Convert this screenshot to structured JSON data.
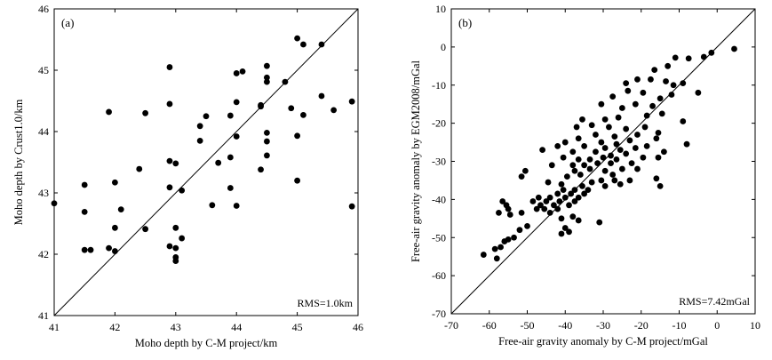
{
  "chart_data": [
    {
      "type": "scatter",
      "panel_label": "(a)",
      "xlabel": "Moho depth by C-M project/km",
      "ylabel": "Moho depth by Crust1.0/km",
      "xlim": [
        41,
        46
      ],
      "ylim": [
        41,
        46
      ],
      "xticks": [
        41,
        42,
        43,
        44,
        45,
        46
      ],
      "yticks": [
        41,
        42,
        43,
        44,
        45,
        46
      ],
      "xtick_labels": [
        "41",
        "42",
        "43",
        "44",
        "45",
        "46"
      ],
      "ytick_labels": [
        "41",
        "42",
        "43",
        "44",
        "45",
        "46"
      ],
      "annotation": "RMS=1.0km",
      "reference_line": "y = x",
      "points": [
        [
          41.0,
          42.83
        ],
        [
          41.5,
          43.13
        ],
        [
          41.5,
          42.69
        ],
        [
          41.5,
          42.07
        ],
        [
          41.6,
          42.07
        ],
        [
          41.9,
          44.32
        ],
        [
          41.9,
          42.1
        ],
        [
          42.0,
          43.17
        ],
        [
          42.0,
          42.43
        ],
        [
          42.0,
          42.05
        ],
        [
          42.1,
          42.73
        ],
        [
          42.4,
          43.39
        ],
        [
          42.5,
          44.3
        ],
        [
          42.5,
          42.41
        ],
        [
          42.9,
          45.05
        ],
        [
          42.9,
          44.45
        ],
        [
          42.9,
          43.52
        ],
        [
          42.9,
          43.09
        ],
        [
          42.9,
          42.13
        ],
        [
          43.0,
          43.48
        ],
        [
          43.0,
          42.43
        ],
        [
          43.0,
          42.1
        ],
        [
          43.0,
          41.95
        ],
        [
          43.0,
          41.89
        ],
        [
          43.1,
          43.04
        ],
        [
          43.1,
          42.26
        ],
        [
          43.4,
          44.09
        ],
        [
          43.4,
          43.85
        ],
        [
          43.5,
          44.25
        ],
        [
          43.6,
          42.8
        ],
        [
          43.7,
          43.49
        ],
        [
          43.9,
          44.26
        ],
        [
          43.9,
          43.58
        ],
        [
          43.9,
          43.08
        ],
        [
          44.0,
          44.95
        ],
        [
          44.0,
          44.48
        ],
        [
          44.0,
          43.92
        ],
        [
          44.0,
          42.79
        ],
        [
          44.1,
          44.98
        ],
        [
          44.4,
          44.43
        ],
        [
          44.4,
          44.41
        ],
        [
          44.4,
          43.38
        ],
        [
          44.5,
          45.07
        ],
        [
          44.5,
          44.88
        ],
        [
          44.5,
          44.81
        ],
        [
          44.5,
          43.98
        ],
        [
          44.5,
          43.84
        ],
        [
          44.5,
          43.61
        ],
        [
          44.8,
          44.81
        ],
        [
          44.9,
          44.38
        ],
        [
          45.0,
          45.52
        ],
        [
          45.0,
          43.93
        ],
        [
          45.0,
          43.2
        ],
        [
          45.1,
          45.42
        ],
        [
          45.1,
          44.27
        ],
        [
          45.4,
          45.42
        ],
        [
          45.4,
          44.58
        ],
        [
          45.6,
          44.35
        ],
        [
          45.9,
          44.49
        ],
        [
          45.9,
          42.78
        ]
      ]
    },
    {
      "type": "scatter",
      "panel_label": "(b)",
      "xlabel": "Free-air gravity anomaly by C-M project/mGal",
      "ylabel": "Free-air gravity anomaly by EGM2008/mGal",
      "xlim": [
        -70,
        10
      ],
      "ylim": [
        -70,
        10
      ],
      "xticks": [
        -70,
        -60,
        -50,
        -40,
        -30,
        -20,
        -10,
        0,
        10
      ],
      "yticks": [
        -70,
        -60,
        -50,
        -40,
        -30,
        -20,
        -10,
        0,
        10
      ],
      "xtick_labels": [
        "-70",
        "-60",
        "-50",
        "-40",
        "-30",
        "-20",
        "-10",
        "0",
        "10"
      ],
      "ytick_labels": [
        "-70",
        "-60",
        "-50",
        "-40",
        "-30",
        "-20",
        "-10",
        "0",
        "10"
      ],
      "annotation": "RMS=7.42mGal",
      "reference_line": "y = x",
      "points": [
        [
          4.5,
          -0.5
        ],
        [
          -1.5,
          -1.5
        ],
        [
          -3.5,
          -2.6
        ],
        [
          -7.5,
          -3.0
        ],
        [
          -11.0,
          -2.8
        ],
        [
          -13.0,
          -5.0
        ],
        [
          -16.5,
          -6.0
        ],
        [
          -9.0,
          -9.5
        ],
        [
          -11.5,
          -10.0
        ],
        [
          -13.5,
          -9.0
        ],
        [
          -17.5,
          -8.5
        ],
        [
          -21.0,
          -8.5
        ],
        [
          -24.0,
          -9.5
        ],
        [
          -5.0,
          -12.0
        ],
        [
          -12.0,
          -12.5
        ],
        [
          -15.0,
          -13.5
        ],
        [
          -19.5,
          -12.0
        ],
        [
          -23.5,
          -11.5
        ],
        [
          -27.5,
          -13.0
        ],
        [
          -17.0,
          -15.5
        ],
        [
          -21.5,
          -15.0
        ],
        [
          -25.0,
          -16.0
        ],
        [
          -30.5,
          -15.0
        ],
        [
          -9.0,
          -19.5
        ],
        [
          -14.5,
          -17.5
        ],
        [
          -18.5,
          -18.0
        ],
        [
          -26.0,
          -18.5
        ],
        [
          -29.5,
          -19.0
        ],
        [
          -35.5,
          -19.0
        ],
        [
          -19.0,
          -21.0
        ],
        [
          -24.0,
          -21.5
        ],
        [
          -28.5,
          -21.0
        ],
        [
          -33.0,
          -20.5
        ],
        [
          -37.0,
          -21.0
        ],
        [
          -15.5,
          -22.5
        ],
        [
          -21.0,
          -23.0
        ],
        [
          -27.0,
          -23.5
        ],
        [
          -32.0,
          -23.0
        ],
        [
          -36.5,
          -24.0
        ],
        [
          -8.0,
          -25.5
        ],
        [
          -16.0,
          -24.0
        ],
        [
          -23.0,
          -24.5
        ],
        [
          -26.5,
          -25.5
        ],
        [
          -30.5,
          -25.0
        ],
        [
          -40.0,
          -25.0
        ],
        [
          -18.5,
          -26.0
        ],
        [
          -21.5,
          -26.5
        ],
        [
          -25.5,
          -27.0
        ],
        [
          -29.5,
          -26.5
        ],
        [
          -35.0,
          -26.0
        ],
        [
          -42.0,
          -26.0
        ],
        [
          -46.0,
          -27.0
        ],
        [
          -14.0,
          -27.5
        ],
        [
          -24.0,
          -28.0
        ],
        [
          -28.0,
          -28.5
        ],
        [
          -32.0,
          -27.5
        ],
        [
          -38.0,
          -27.5
        ],
        [
          -15.5,
          -29.0
        ],
        [
          -19.5,
          -29.0
        ],
        [
          -26.5,
          -29.5
        ],
        [
          -30.0,
          -29.0
        ],
        [
          -33.5,
          -29.5
        ],
        [
          -36.5,
          -29.5
        ],
        [
          -40.5,
          -29.0
        ],
        [
          -22.5,
          -30.5
        ],
        [
          -28.0,
          -30.5
        ],
        [
          -31.5,
          -30.5
        ],
        [
          -35.0,
          -31.0
        ],
        [
          -38.0,
          -31.0
        ],
        [
          -43.5,
          -31.0
        ],
        [
          -21.0,
          -32.0
        ],
        [
          -25.0,
          -32.0
        ],
        [
          -29.5,
          -32.5
        ],
        [
          -33.5,
          -32.0
        ],
        [
          -37.5,
          -32.5
        ],
        [
          -50.5,
          -32.5
        ],
        [
          -27.5,
          -33.5
        ],
        [
          -36.0,
          -33.5
        ],
        [
          -39.5,
          -34.0
        ],
        [
          -51.5,
          -34.0
        ],
        [
          -16.0,
          -34.5
        ],
        [
          -23.0,
          -35.0
        ],
        [
          -27.0,
          -35.0
        ],
        [
          -30.5,
          -35.0
        ],
        [
          -33.0,
          -35.5
        ],
        [
          -15.0,
          -36.5
        ],
        [
          -25.5,
          -36.0
        ],
        [
          -29.5,
          -36.5
        ],
        [
          -35.5,
          -36.5
        ],
        [
          -41.0,
          -36.0
        ],
        [
          -44.5,
          -35.5
        ],
        [
          -34.0,
          -37.5
        ],
        [
          -37.5,
          -37.5
        ],
        [
          -40.5,
          -37.5
        ],
        [
          -35.0,
          -38.5
        ],
        [
          -38.5,
          -38.5
        ],
        [
          -42.0,
          -38.5
        ],
        [
          -36.5,
          -39.5
        ],
        [
          -40.0,
          -39.5
        ],
        [
          -44.0,
          -39.5
        ],
        [
          -47.0,
          -39.5
        ],
        [
          -37.5,
          -40.5
        ],
        [
          -41.5,
          -40.5
        ],
        [
          -45.0,
          -40.5
        ],
        [
          -48.5,
          -40.5
        ],
        [
          -56.5,
          -40.5
        ],
        [
          -39.0,
          -41.5
        ],
        [
          -43.0,
          -41.5
        ],
        [
          -46.5,
          -41.5
        ],
        [
          -55.5,
          -41.5
        ],
        [
          -42.0,
          -42.5
        ],
        [
          -45.5,
          -42.5
        ],
        [
          -47.5,
          -42.5
        ],
        [
          -55.0,
          -42.5
        ],
        [
          -44.0,
          -43.5
        ],
        [
          -51.5,
          -43.5
        ],
        [
          -54.5,
          -44.0
        ],
        [
          -57.5,
          -43.5
        ],
        [
          -38.0,
          -44.5
        ],
        [
          -41.0,
          -45.0
        ],
        [
          -36.5,
          -45.5
        ],
        [
          -31.0,
          -46.0
        ],
        [
          -50.0,
          -47.0
        ],
        [
          -40.0,
          -47.5
        ],
        [
          -52.0,
          -48.0
        ],
        [
          -39.0,
          -48.5
        ],
        [
          -41.0,
          -49.0
        ],
        [
          -53.5,
          -50.0
        ],
        [
          -55.0,
          -50.5
        ],
        [
          -56.0,
          -51.0
        ],
        [
          -57.0,
          -52.5
        ],
        [
          -58.5,
          -53.0
        ],
        [
          -61.5,
          -54.5
        ],
        [
          -58.0,
          -55.5
        ]
      ]
    }
  ]
}
